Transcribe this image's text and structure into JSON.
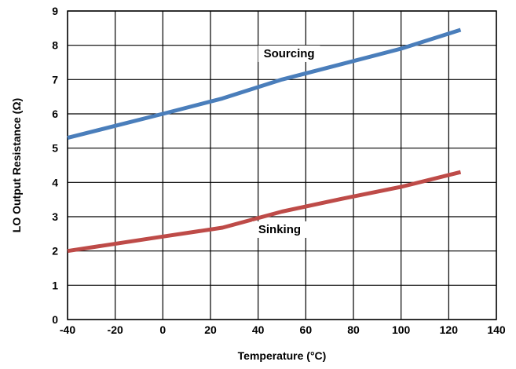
{
  "chart_data": {
    "type": "line",
    "title": "",
    "xlabel": "Temperature (°C)",
    "ylabel": "LO Output Resistance (Ω)",
    "xlim": [
      -40,
      140
    ],
    "ylim": [
      0,
      9
    ],
    "xticks": [
      -40,
      -20,
      0,
      20,
      40,
      60,
      80,
      100,
      120,
      140
    ],
    "yticks": [
      0,
      1,
      2,
      3,
      4,
      5,
      6,
      7,
      8,
      9
    ],
    "grid": true,
    "series": [
      {
        "name": "Sourcing",
        "color": "#4a7ebb",
        "x": [
          -40,
          0,
          25,
          50,
          75,
          100,
          125
        ],
        "y": [
          5.3,
          6.0,
          6.45,
          7.0,
          7.45,
          7.9,
          8.45
        ]
      },
      {
        "name": "Sinking",
        "color": "#be4b48",
        "x": [
          -40,
          0,
          25,
          50,
          75,
          100,
          125
        ],
        "y": [
          2.0,
          2.42,
          2.68,
          3.15,
          3.52,
          3.87,
          4.3
        ]
      }
    ],
    "annotations": [
      {
        "text": "Sourcing",
        "x": 53,
        "y": 7.65
      },
      {
        "text": "Sinking",
        "x": 49,
        "y": 2.52
      }
    ]
  }
}
